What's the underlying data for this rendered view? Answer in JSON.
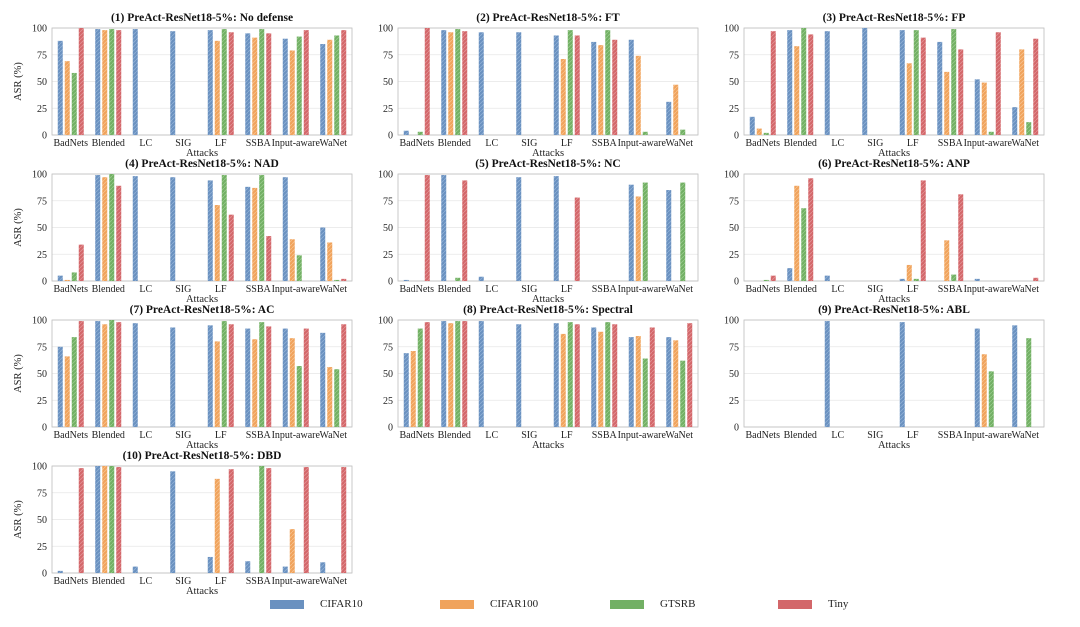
{
  "figure": {
    "series_names": [
      "CIFAR10",
      "CIFAR100",
      "GTSRB",
      "Tiny"
    ],
    "colors": {
      "CIFAR10": "#6a91c0",
      "CIFAR100": "#f0a35c",
      "GTSRB": "#72b064",
      "Tiny": "#d3676a"
    }
  },
  "chart_data": [
    {
      "type": "bar",
      "title": "(1) PreAct-ResNet18-5%: No defense",
      "xlabel": "Attacks",
      "ylabel": "ASR (%)",
      "ylim": [
        0,
        100
      ],
      "yticks": [
        0,
        25,
        50,
        75,
        100
      ],
      "grid": "horizontal",
      "categories": [
        "BadNets",
        "Blended",
        "LC",
        "SIG",
        "LF",
        "SSBA",
        "Input-aware",
        "WaNet"
      ],
      "series": [
        {
          "name": "CIFAR10",
          "values": [
            88,
            99,
            99,
            97,
            98,
            95,
            90,
            85
          ]
        },
        {
          "name": "CIFAR100",
          "values": [
            69,
            98,
            0,
            0,
            88,
            91,
            79,
            89
          ]
        },
        {
          "name": "GTSRB",
          "values": [
            58,
            99,
            0,
            0,
            99,
            99,
            92,
            93
          ]
        },
        {
          "name": "Tiny",
          "values": [
            100,
            98,
            0,
            0,
            96,
            95,
            98,
            98
          ]
        }
      ]
    },
    {
      "type": "bar",
      "title": "(2) PreAct-ResNet18-5%: FT",
      "xlabel": "Attacks",
      "ylabel": "",
      "ylim": [
        0,
        100
      ],
      "yticks": [
        0,
        25,
        50,
        75,
        100
      ],
      "grid": "horizontal",
      "categories": [
        "BadNets",
        "Blended",
        "LC",
        "SIG",
        "LF",
        "SSBA",
        "Input-aware",
        "WaNet"
      ],
      "series": [
        {
          "name": "CIFAR10",
          "values": [
            4,
            98,
            96,
            96,
            93,
            87,
            89,
            31
          ]
        },
        {
          "name": "CIFAR100",
          "values": [
            0,
            96,
            0,
            0,
            71,
            84,
            74,
            47
          ]
        },
        {
          "name": "GTSRB",
          "values": [
            3,
            99,
            0,
            0,
            98,
            98,
            3,
            5
          ]
        },
        {
          "name": "Tiny",
          "values": [
            100,
            97,
            0,
            0,
            93,
            89,
            0,
            0
          ]
        }
      ]
    },
    {
      "type": "bar",
      "title": "(3) PreAct-ResNet18-5%: FP",
      "xlabel": "Attacks",
      "ylabel": "",
      "ylim": [
        0,
        100
      ],
      "yticks": [
        0,
        25,
        50,
        75,
        100
      ],
      "grid": "horizontal",
      "categories": [
        "BadNets",
        "Blended",
        "LC",
        "SIG",
        "LF",
        "SSBA",
        "Input-aware",
        "WaNet"
      ],
      "series": [
        {
          "name": "CIFAR10",
          "values": [
            17,
            98,
            97,
            100,
            98,
            87,
            52,
            26
          ]
        },
        {
          "name": "CIFAR100",
          "values": [
            6,
            83,
            0,
            0,
            67,
            59,
            49,
            80
          ]
        },
        {
          "name": "GTSRB",
          "values": [
            2,
            100,
            0,
            0,
            98,
            99,
            3,
            12
          ]
        },
        {
          "name": "Tiny",
          "values": [
            97,
            94,
            0,
            0,
            91,
            80,
            96,
            90
          ]
        }
      ]
    },
    {
      "type": "bar",
      "title": "(4) PreAct-ResNet18-5%: NAD",
      "xlabel": "Attacks",
      "ylabel": "ASR (%)",
      "ylim": [
        0,
        100
      ],
      "yticks": [
        0,
        25,
        50,
        75,
        100
      ],
      "grid": "horizontal",
      "categories": [
        "BadNets",
        "Blended",
        "LC",
        "SIG",
        "LF",
        "SSBA",
        "Input-aware",
        "WaNet"
      ],
      "series": [
        {
          "name": "CIFAR10",
          "values": [
            5,
            99,
            98,
            97,
            94,
            88,
            97,
            50
          ]
        },
        {
          "name": "CIFAR100",
          "values": [
            1,
            97,
            0,
            0,
            71,
            87,
            39,
            36
          ]
        },
        {
          "name": "GTSRB",
          "values": [
            8,
            100,
            0,
            0,
            99,
            99,
            24,
            1
          ]
        },
        {
          "name": "Tiny",
          "values": [
            34,
            89,
            0,
            0,
            62,
            42,
            0,
            2
          ]
        }
      ]
    },
    {
      "type": "bar",
      "title": "(5) PreAct-ResNet18-5%: NC",
      "xlabel": "Attacks",
      "ylabel": "",
      "ylim": [
        0,
        100
      ],
      "yticks": [
        0,
        25,
        50,
        75,
        100
      ],
      "grid": "horizontal",
      "categories": [
        "BadNets",
        "Blended",
        "LC",
        "SIG",
        "LF",
        "SSBA",
        "Input-aware",
        "WaNet"
      ],
      "series": [
        {
          "name": "CIFAR10",
          "values": [
            1,
            99,
            4,
            97,
            98,
            0,
            90,
            85
          ]
        },
        {
          "name": "CIFAR100",
          "values": [
            0,
            0,
            0,
            0,
            0,
            0,
            79,
            0
          ]
        },
        {
          "name": "GTSRB",
          "values": [
            0,
            3,
            0,
            0,
            0,
            0,
            92,
            92
          ]
        },
        {
          "name": "Tiny",
          "values": [
            99,
            94,
            0,
            0,
            78,
            0,
            0,
            0
          ]
        }
      ]
    },
    {
      "type": "bar",
      "title": "(6) PreAct-ResNet18-5%: ANP",
      "xlabel": "Attacks",
      "ylabel": "",
      "ylim": [
        0,
        100
      ],
      "yticks": [
        0,
        25,
        50,
        75,
        100
      ],
      "grid": "horizontal",
      "categories": [
        "BadNets",
        "Blended",
        "LC",
        "SIG",
        "LF",
        "SSBA",
        "Input-aware",
        "WaNet"
      ],
      "series": [
        {
          "name": "CIFAR10",
          "values": [
            0,
            12,
            5,
            0,
            2,
            0,
            2,
            0
          ]
        },
        {
          "name": "CIFAR100",
          "values": [
            0,
            89,
            0,
            0,
            15,
            38,
            0,
            0
          ]
        },
        {
          "name": "GTSRB",
          "values": [
            1,
            68,
            0,
            0,
            2,
            6,
            0,
            0
          ]
        },
        {
          "name": "Tiny",
          "values": [
            5,
            96,
            0,
            0,
            94,
            81,
            0,
            3
          ]
        }
      ]
    },
    {
      "type": "bar",
      "title": "(7) PreAct-ResNet18-5%: AC",
      "xlabel": "Attacks",
      "ylabel": "ASR (%)",
      "ylim": [
        0,
        100
      ],
      "yticks": [
        0,
        25,
        50,
        75,
        100
      ],
      "grid": "horizontal",
      "categories": [
        "BadNets",
        "Blended",
        "LC",
        "SIG",
        "LF",
        "SSBA",
        "Input-aware",
        "WaNet"
      ],
      "series": [
        {
          "name": "CIFAR10",
          "values": [
            75,
            99,
            97,
            93,
            95,
            92,
            92,
            88
          ]
        },
        {
          "name": "CIFAR100",
          "values": [
            66,
            96,
            0,
            0,
            80,
            82,
            83,
            56
          ]
        },
        {
          "name": "GTSRB",
          "values": [
            84,
            100,
            0,
            0,
            99,
            98,
            57,
            54
          ]
        },
        {
          "name": "Tiny",
          "values": [
            99,
            98,
            0,
            0,
            96,
            94,
            92,
            96
          ]
        }
      ]
    },
    {
      "type": "bar",
      "title": "(8) PreAct-ResNet18-5%: Spectral",
      "xlabel": "Attacks",
      "ylabel": "",
      "ylim": [
        0,
        100
      ],
      "yticks": [
        0,
        25,
        50,
        75,
        100
      ],
      "grid": "horizontal",
      "categories": [
        "BadNets",
        "Blended",
        "LC",
        "SIG",
        "LF",
        "SSBA",
        "Input-aware",
        "WaNet"
      ],
      "series": [
        {
          "name": "CIFAR10",
          "values": [
            69,
            99,
            99,
            96,
            97,
            93,
            84,
            84
          ]
        },
        {
          "name": "CIFAR100",
          "values": [
            71,
            97,
            0,
            0,
            87,
            89,
            85,
            81
          ]
        },
        {
          "name": "GTSRB",
          "values": [
            92,
            99,
            0,
            0,
            98,
            98,
            64,
            62
          ]
        },
        {
          "name": "Tiny",
          "values": [
            98,
            99,
            0,
            0,
            96,
            96,
            93,
            97
          ]
        }
      ]
    },
    {
      "type": "bar",
      "title": "(9) PreAct-ResNet18-5%: ABL",
      "xlabel": "Attacks",
      "ylabel": "",
      "ylim": [
        0,
        100
      ],
      "yticks": [
        0,
        25,
        50,
        75,
        100
      ],
      "grid": "horizontal",
      "categories": [
        "BadNets",
        "Blended",
        "LC",
        "SIG",
        "LF",
        "SSBA",
        "Input-aware",
        "WaNet"
      ],
      "series": [
        {
          "name": "CIFAR10",
          "values": [
            0,
            0,
            99,
            0,
            98,
            0,
            92,
            95
          ]
        },
        {
          "name": "CIFAR100",
          "values": [
            0,
            0,
            0,
            0,
            0,
            0,
            68,
            0
          ]
        },
        {
          "name": "GTSRB",
          "values": [
            0,
            0,
            0,
            0,
            0,
            0,
            52,
            83
          ]
        },
        {
          "name": "Tiny",
          "values": [
            0,
            0,
            0,
            0,
            0,
            0,
            0,
            0
          ]
        }
      ]
    },
    {
      "type": "bar",
      "title": "(10) PreAct-ResNet18-5%: DBD",
      "xlabel": "Attacks",
      "ylabel": "ASR (%)",
      "ylim": [
        0,
        100
      ],
      "yticks": [
        0,
        25,
        50,
        75,
        100
      ],
      "grid": "horizontal",
      "categories": [
        "BadNets",
        "Blended",
        "LC",
        "SIG",
        "LF",
        "SSBA",
        "Input-aware",
        "WaNet"
      ],
      "series": [
        {
          "name": "CIFAR10",
          "values": [
            2,
            100,
            6,
            95,
            15,
            11,
            6,
            10
          ]
        },
        {
          "name": "CIFAR100",
          "values": [
            0,
            100,
            0,
            0,
            88,
            0,
            41,
            0
          ]
        },
        {
          "name": "GTSRB",
          "values": [
            0,
            100,
            0,
            0,
            0,
            100,
            0,
            0
          ]
        },
        {
          "name": "Tiny",
          "values": [
            98,
            99,
            0,
            0,
            97,
            98,
            99,
            99
          ]
        }
      ]
    }
  ]
}
